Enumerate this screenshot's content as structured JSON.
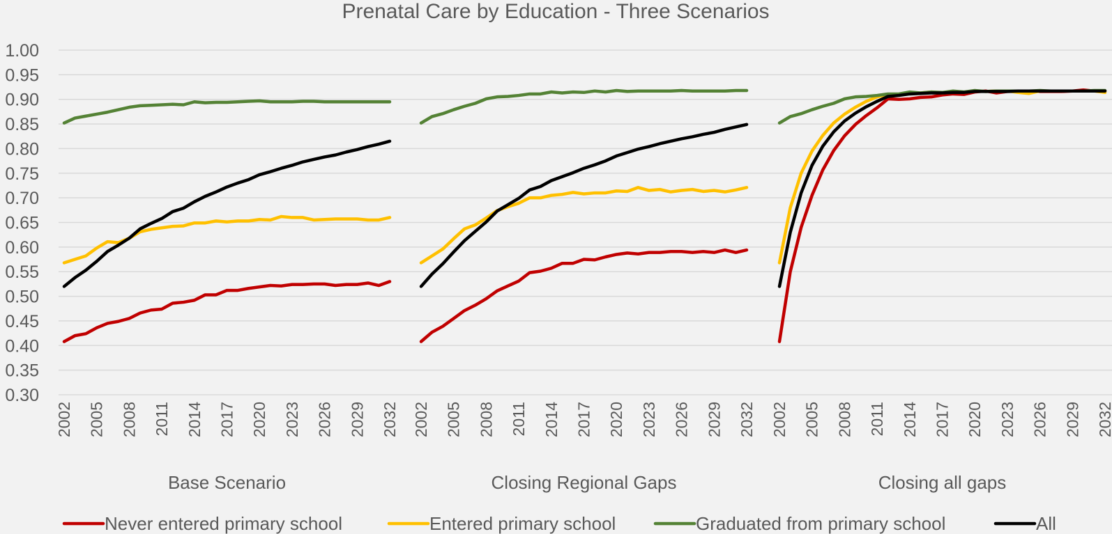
{
  "chart_data": {
    "type": "line",
    "title": "Prenatal Care by Education - Three Scenarios",
    "xlabel": "",
    "ylabel": "",
    "ylim": [
      0.3,
      1.0
    ],
    "y_ticks": [
      "0.30",
      "0.35",
      "0.40",
      "0.45",
      "0.50",
      "0.55",
      "0.60",
      "0.65",
      "0.70",
      "0.75",
      "0.80",
      "0.85",
      "0.90",
      "0.95",
      "1.00"
    ],
    "x": [
      2002,
      2003,
      2004,
      2005,
      2006,
      2007,
      2008,
      2009,
      2010,
      2011,
      2012,
      2013,
      2014,
      2015,
      2016,
      2017,
      2018,
      2019,
      2020,
      2021,
      2022,
      2023,
      2024,
      2025,
      2026,
      2027,
      2028,
      2029,
      2030,
      2031,
      2032
    ],
    "x_tick_labels": [
      "2002",
      "2005",
      "2008",
      "2011",
      "2014",
      "2017",
      "2020",
      "2023",
      "2026",
      "2029",
      "2032"
    ],
    "grid": true,
    "legend_position": "bottom",
    "colors": {
      "Never entered primary school": "#c00000",
      "Entered primary school": "#ffc000",
      "Graduated from primary school": "#548235",
      "All": "#000000"
    },
    "panels": [
      {
        "label": "Base Scenario",
        "series": [
          {
            "name": "Never entered primary school",
            "values": [
              0.408,
              0.42,
              0.424,
              0.436,
              0.445,
              0.449,
              0.455,
              0.466,
              0.472,
              0.474,
              0.486,
              0.488,
              0.492,
              0.503,
              0.503,
              0.512,
              0.512,
              0.516,
              0.519,
              0.522,
              0.521,
              0.524,
              0.524,
              0.525,
              0.525,
              0.522,
              0.524,
              0.524,
              0.527,
              0.522,
              0.53
            ]
          },
          {
            "name": "Entered primary school",
            "values": [
              0.568,
              0.575,
              0.582,
              0.598,
              0.611,
              0.609,
              0.618,
              0.631,
              0.636,
              0.639,
              0.642,
              0.643,
              0.649,
              0.649,
              0.653,
              0.651,
              0.653,
              0.653,
              0.656,
              0.655,
              0.662,
              0.66,
              0.66,
              0.655,
              0.656,
              0.657,
              0.657,
              0.657,
              0.655,
              0.655,
              0.66
            ]
          },
          {
            "name": "Graduated from primary school",
            "values": [
              0.852,
              0.862,
              0.866,
              0.87,
              0.874,
              0.879,
              0.884,
              0.887,
              0.888,
              0.889,
              0.89,
              0.889,
              0.895,
              0.893,
              0.894,
              0.894,
              0.895,
              0.896,
              0.897,
              0.895,
              0.895,
              0.895,
              0.896,
              0.896,
              0.895,
              0.895,
              0.895,
              0.895,
              0.895,
              0.895,
              0.895
            ]
          },
          {
            "name": "All",
            "values": [
              0.52,
              0.538,
              0.553,
              0.571,
              0.591,
              0.604,
              0.618,
              0.637,
              0.648,
              0.658,
              0.672,
              0.679,
              0.692,
              0.703,
              0.712,
              0.722,
              0.73,
              0.737,
              0.747,
              0.753,
              0.76,
              0.766,
              0.773,
              0.778,
              0.783,
              0.787,
              0.793,
              0.798,
              0.804,
              0.809,
              0.815
            ]
          }
        ]
      },
      {
        "label": "Closing Regional Gaps",
        "series": [
          {
            "name": "Never entered primary school",
            "values": [
              0.408,
              0.427,
              0.439,
              0.455,
              0.471,
              0.482,
              0.495,
              0.511,
              0.521,
              0.531,
              0.548,
              0.551,
              0.557,
              0.567,
              0.567,
              0.575,
              0.574,
              0.58,
              0.585,
              0.588,
              0.586,
              0.589,
              0.589,
              0.591,
              0.591,
              0.589,
              0.591,
              0.589,
              0.594,
              0.589,
              0.594
            ]
          },
          {
            "name": "Entered primary school",
            "values": [
              0.568,
              0.582,
              0.596,
              0.617,
              0.637,
              0.645,
              0.659,
              0.674,
              0.682,
              0.689,
              0.7,
              0.7,
              0.705,
              0.707,
              0.711,
              0.708,
              0.71,
              0.71,
              0.714,
              0.713,
              0.721,
              0.715,
              0.717,
              0.712,
              0.715,
              0.717,
              0.713,
              0.715,
              0.712,
              0.716,
              0.721
            ]
          },
          {
            "name": "Graduated from primary school",
            "values": [
              0.852,
              0.865,
              0.871,
              0.879,
              0.886,
              0.892,
              0.901,
              0.905,
              0.906,
              0.908,
              0.911,
              0.911,
              0.915,
              0.913,
              0.915,
              0.914,
              0.917,
              0.915,
              0.918,
              0.916,
              0.917,
              0.917,
              0.917,
              0.917,
              0.918,
              0.917,
              0.917,
              0.917,
              0.917,
              0.918,
              0.918
            ]
          },
          {
            "name": "All",
            "values": [
              0.52,
              0.545,
              0.566,
              0.59,
              0.613,
              0.632,
              0.651,
              0.673,
              0.686,
              0.699,
              0.716,
              0.723,
              0.735,
              0.743,
              0.751,
              0.76,
              0.767,
              0.775,
              0.785,
              0.792,
              0.799,
              0.804,
              0.81,
              0.815,
              0.82,
              0.824,
              0.829,
              0.833,
              0.839,
              0.844,
              0.849
            ]
          }
        ]
      },
      {
        "label": "Closing all gaps",
        "series": [
          {
            "name": "Never entered primary school",
            "values": [
              0.408,
              0.55,
              0.64,
              0.705,
              0.757,
              0.796,
              0.826,
              0.849,
              0.867,
              0.883,
              0.901,
              0.9,
              0.901,
              0.904,
              0.905,
              0.909,
              0.911,
              0.91,
              0.915,
              0.917,
              0.913,
              0.916,
              0.916,
              0.917,
              0.916,
              0.916,
              0.916,
              0.917,
              0.919,
              0.917,
              0.917
            ]
          },
          {
            "name": "Entered primary school",
            "values": [
              0.568,
              0.68,
              0.75,
              0.795,
              0.827,
              0.852,
              0.87,
              0.884,
              0.896,
              0.905,
              0.91,
              0.91,
              0.912,
              0.913,
              0.915,
              0.913,
              0.915,
              0.914,
              0.917,
              0.916,
              0.917,
              0.917,
              0.914,
              0.912,
              0.917,
              0.917,
              0.917,
              0.917,
              0.917,
              0.917,
              0.914
            ]
          },
          {
            "name": "Graduated from primary school",
            "values": [
              0.852,
              0.865,
              0.871,
              0.879,
              0.886,
              0.892,
              0.901,
              0.905,
              0.906,
              0.908,
              0.911,
              0.911,
              0.915,
              0.913,
              0.915,
              0.914,
              0.917,
              0.915,
              0.918,
              0.916,
              0.917,
              0.917,
              0.917,
              0.917,
              0.918,
              0.917,
              0.917,
              0.917,
              0.917,
              0.918,
              0.918
            ]
          },
          {
            "name": "All",
            "values": [
              0.52,
              0.63,
              0.71,
              0.766,
              0.805,
              0.834,
              0.856,
              0.872,
              0.885,
              0.896,
              0.906,
              0.908,
              0.911,
              0.912,
              0.913,
              0.913,
              0.914,
              0.914,
              0.916,
              0.916,
              0.916,
              0.916,
              0.917,
              0.917,
              0.917,
              0.917,
              0.917,
              0.917,
              0.917,
              0.917,
              0.917
            ]
          }
        ]
      }
    ]
  }
}
